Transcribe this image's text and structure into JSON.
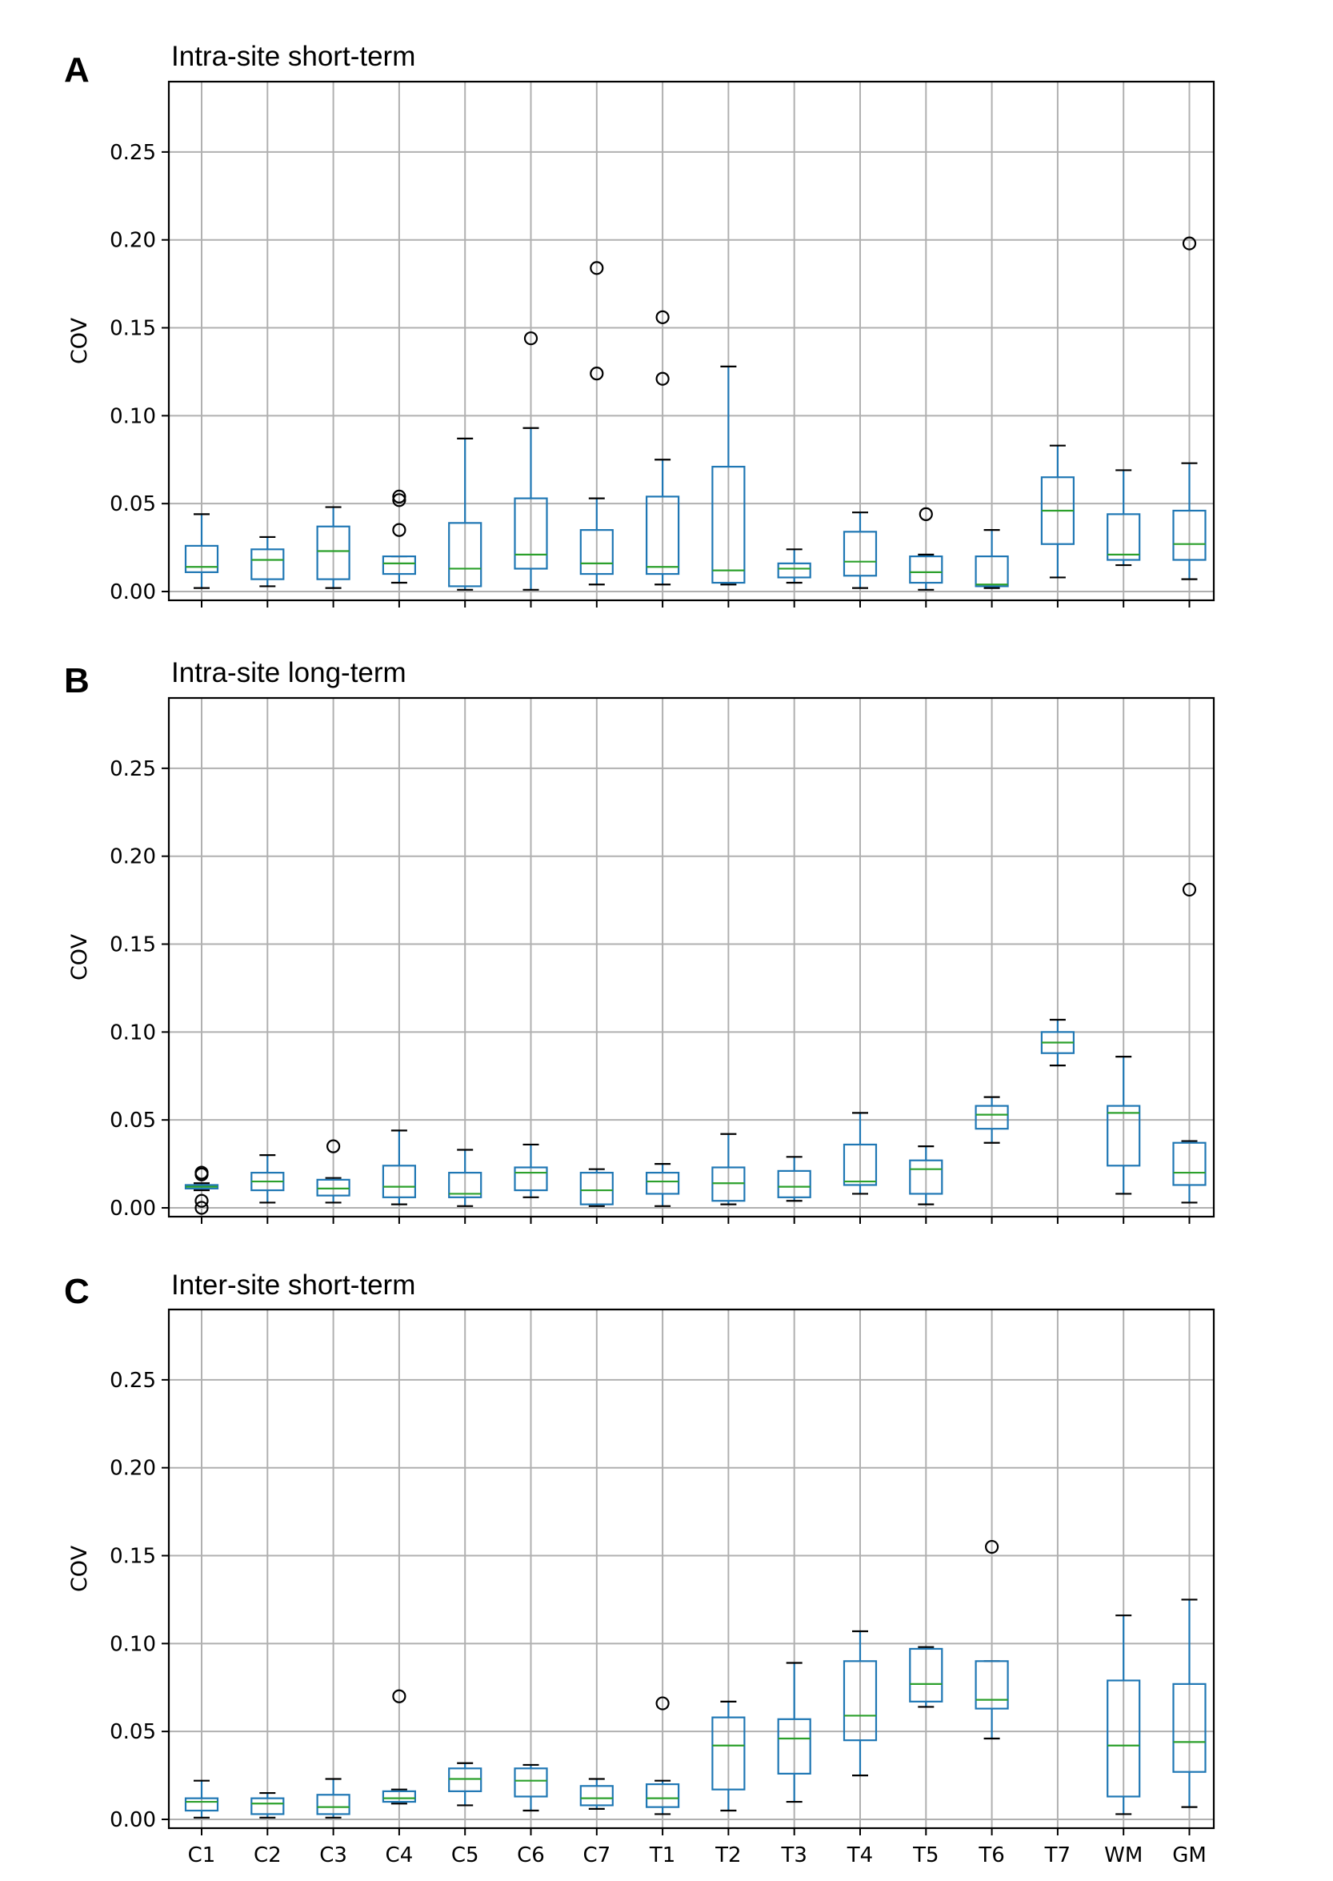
{
  "chart_data": [
    {
      "type": "box",
      "panel_label": "A",
      "title": "Intra-site short-term",
      "ylabel": "COV",
      "xlabel": "",
      "ylim": [
        -0.005,
        0.29
      ],
      "yticks": [
        "0.00",
        "0.05",
        "0.10",
        "0.15",
        "0.20",
        "0.25"
      ],
      "grid": true,
      "show_x_tick_labels": false,
      "categories": [
        "C1",
        "C2",
        "C3",
        "C4",
        "C5",
        "C6",
        "C7",
        "T1",
        "T2",
        "T3",
        "T4",
        "T5",
        "T6",
        "T7",
        "WM",
        "GM"
      ],
      "boxes": [
        {
          "category": "C1",
          "whislo": 0.002,
          "q1": 0.011,
          "median": 0.014,
          "q3": 0.026,
          "whishi": 0.044,
          "fliers": []
        },
        {
          "category": "C2",
          "whislo": 0.003,
          "q1": 0.007,
          "median": 0.018,
          "q3": 0.024,
          "whishi": 0.031,
          "fliers": []
        },
        {
          "category": "C3",
          "whislo": 0.002,
          "q1": 0.007,
          "median": 0.023,
          "q3": 0.037,
          "whishi": 0.048,
          "fliers": []
        },
        {
          "category": "C4",
          "whislo": 0.005,
          "q1": 0.01,
          "median": 0.016,
          "q3": 0.02,
          "whishi": 0.02,
          "fliers": [
            0.035,
            0.052,
            0.054
          ]
        },
        {
          "category": "C5",
          "whislo": 0.001,
          "q1": 0.003,
          "median": 0.013,
          "q3": 0.039,
          "whishi": 0.087,
          "fliers": []
        },
        {
          "category": "C6",
          "whislo": 0.001,
          "q1": 0.013,
          "median": 0.021,
          "q3": 0.053,
          "whishi": 0.093,
          "fliers": [
            0.144
          ]
        },
        {
          "category": "C7",
          "whislo": 0.004,
          "q1": 0.01,
          "median": 0.016,
          "q3": 0.035,
          "whishi": 0.053,
          "fliers": [
            0.124,
            0.184
          ]
        },
        {
          "category": "T1",
          "whislo": 0.004,
          "q1": 0.01,
          "median": 0.014,
          "q3": 0.054,
          "whishi": 0.075,
          "fliers": [
            0.121,
            0.156
          ]
        },
        {
          "category": "T2",
          "whislo": 0.004,
          "q1": 0.005,
          "median": 0.012,
          "q3": 0.071,
          "whishi": 0.128,
          "fliers": []
        },
        {
          "category": "T3",
          "whislo": 0.005,
          "q1": 0.008,
          "median": 0.013,
          "q3": 0.016,
          "whishi": 0.024,
          "fliers": []
        },
        {
          "category": "T4",
          "whislo": 0.002,
          "q1": 0.009,
          "median": 0.017,
          "q3": 0.034,
          "whishi": 0.045,
          "fliers": []
        },
        {
          "category": "T5",
          "whislo": 0.001,
          "q1": 0.005,
          "median": 0.011,
          "q3": 0.02,
          "whishi": 0.021,
          "fliers": [
            0.044
          ]
        },
        {
          "category": "T6",
          "whislo": 0.002,
          "q1": 0.003,
          "median": 0.004,
          "q3": 0.02,
          "whishi": 0.035,
          "fliers": []
        },
        {
          "category": "T7",
          "whislo": 0.008,
          "q1": 0.027,
          "median": 0.046,
          "q3": 0.065,
          "whishi": 0.083,
          "fliers": []
        },
        {
          "category": "WM",
          "whislo": 0.015,
          "q1": 0.018,
          "median": 0.021,
          "q3": 0.044,
          "whishi": 0.069,
          "fliers": []
        },
        {
          "category": "GM",
          "whislo": 0.007,
          "q1": 0.018,
          "median": 0.027,
          "q3": 0.046,
          "whishi": 0.073,
          "fliers": [
            0.198
          ]
        }
      ]
    },
    {
      "type": "box",
      "panel_label": "B",
      "title": "Intra-site long-term",
      "ylabel": "COV",
      "xlabel": "",
      "ylim": [
        -0.005,
        0.29
      ],
      "yticks": [
        "0.00",
        "0.05",
        "0.10",
        "0.15",
        "0.20",
        "0.25"
      ],
      "grid": true,
      "show_x_tick_labels": false,
      "categories": [
        "C1",
        "C2",
        "C3",
        "C4",
        "C5",
        "C6",
        "C7",
        "T1",
        "T2",
        "T3",
        "T4",
        "T5",
        "T6",
        "T7",
        "WM",
        "GM"
      ],
      "boxes": [
        {
          "category": "C1",
          "whislo": 0.01,
          "q1": 0.011,
          "median": 0.012,
          "q3": 0.013,
          "whishi": 0.014,
          "fliers": [
            0.0,
            0.004,
            0.019,
            0.02
          ]
        },
        {
          "category": "C2",
          "whislo": 0.003,
          "q1": 0.01,
          "median": 0.015,
          "q3": 0.02,
          "whishi": 0.03,
          "fliers": []
        },
        {
          "category": "C3",
          "whislo": 0.003,
          "q1": 0.007,
          "median": 0.011,
          "q3": 0.016,
          "whishi": 0.017,
          "fliers": [
            0.035
          ]
        },
        {
          "category": "C4",
          "whislo": 0.002,
          "q1": 0.006,
          "median": 0.012,
          "q3": 0.024,
          "whishi": 0.044,
          "fliers": []
        },
        {
          "category": "C5",
          "whislo": 0.001,
          "q1": 0.006,
          "median": 0.008,
          "q3": 0.02,
          "whishi": 0.033,
          "fliers": []
        },
        {
          "category": "C6",
          "whislo": 0.006,
          "q1": 0.01,
          "median": 0.02,
          "q3": 0.023,
          "whishi": 0.036,
          "fliers": []
        },
        {
          "category": "C7",
          "whislo": 0.001,
          "q1": 0.002,
          "median": 0.01,
          "q3": 0.02,
          "whishi": 0.022,
          "fliers": []
        },
        {
          "category": "T1",
          "whislo": 0.001,
          "q1": 0.008,
          "median": 0.015,
          "q3": 0.02,
          "whishi": 0.025,
          "fliers": []
        },
        {
          "category": "T2",
          "whislo": 0.002,
          "q1": 0.004,
          "median": 0.014,
          "q3": 0.023,
          "whishi": 0.042,
          "fliers": []
        },
        {
          "category": "T3",
          "whislo": 0.004,
          "q1": 0.006,
          "median": 0.012,
          "q3": 0.021,
          "whishi": 0.029,
          "fliers": []
        },
        {
          "category": "T4",
          "whislo": 0.008,
          "q1": 0.013,
          "median": 0.015,
          "q3": 0.036,
          "whishi": 0.054,
          "fliers": []
        },
        {
          "category": "T5",
          "whislo": 0.002,
          "q1": 0.008,
          "median": 0.022,
          "q3": 0.027,
          "whishi": 0.035,
          "fliers": []
        },
        {
          "category": "T6",
          "whislo": 0.037,
          "q1": 0.045,
          "median": 0.053,
          "q3": 0.058,
          "whishi": 0.063,
          "fliers": []
        },
        {
          "category": "T7",
          "whislo": 0.081,
          "q1": 0.088,
          "median": 0.094,
          "q3": 0.1,
          "whishi": 0.107,
          "fliers": []
        },
        {
          "category": "WM",
          "whislo": 0.008,
          "q1": 0.024,
          "median": 0.054,
          "q3": 0.058,
          "whishi": 0.086,
          "fliers": []
        },
        {
          "category": "GM",
          "whislo": 0.003,
          "q1": 0.013,
          "median": 0.02,
          "q3": 0.037,
          "whishi": 0.038,
          "fliers": [
            0.181
          ]
        }
      ]
    },
    {
      "type": "box",
      "panel_label": "C",
      "title": "Inter-site short-term",
      "ylabel": "COV",
      "xlabel": "",
      "ylim": [
        -0.005,
        0.29
      ],
      "yticks": [
        "0.00",
        "0.05",
        "0.10",
        "0.15",
        "0.20",
        "0.25"
      ],
      "grid": true,
      "show_x_tick_labels": true,
      "categories": [
        "C1",
        "C2",
        "C3",
        "C4",
        "C5",
        "C6",
        "C7",
        "T1",
        "T2",
        "T3",
        "T4",
        "T5",
        "T6",
        "T7",
        "WM",
        "GM"
      ],
      "boxes": [
        {
          "category": "C1",
          "whislo": 0.001,
          "q1": 0.005,
          "median": 0.01,
          "q3": 0.012,
          "whishi": 0.022,
          "fliers": []
        },
        {
          "category": "C2",
          "whislo": 0.001,
          "q1": 0.003,
          "median": 0.009,
          "q3": 0.012,
          "whishi": 0.015,
          "fliers": []
        },
        {
          "category": "C3",
          "whislo": 0.001,
          "q1": 0.003,
          "median": 0.007,
          "q3": 0.014,
          "whishi": 0.023,
          "fliers": []
        },
        {
          "category": "C4",
          "whislo": 0.009,
          "q1": 0.01,
          "median": 0.012,
          "q3": 0.016,
          "whishi": 0.017,
          "fliers": [
            0.07
          ]
        },
        {
          "category": "C5",
          "whislo": 0.008,
          "q1": 0.016,
          "median": 0.023,
          "q3": 0.029,
          "whishi": 0.032,
          "fliers": []
        },
        {
          "category": "C6",
          "whislo": 0.005,
          "q1": 0.013,
          "median": 0.022,
          "q3": 0.029,
          "whishi": 0.031,
          "fliers": []
        },
        {
          "category": "C7",
          "whislo": 0.006,
          "q1": 0.008,
          "median": 0.012,
          "q3": 0.019,
          "whishi": 0.023,
          "fliers": []
        },
        {
          "category": "T1",
          "whislo": 0.003,
          "q1": 0.007,
          "median": 0.012,
          "q3": 0.02,
          "whishi": 0.022,
          "fliers": [
            0.066
          ]
        },
        {
          "category": "T2",
          "whislo": 0.005,
          "q1": 0.017,
          "median": 0.042,
          "q3": 0.058,
          "whishi": 0.067,
          "fliers": []
        },
        {
          "category": "T3",
          "whislo": 0.01,
          "q1": 0.026,
          "median": 0.046,
          "q3": 0.057,
          "whishi": 0.089,
          "fliers": []
        },
        {
          "category": "T4",
          "whislo": 0.025,
          "q1": 0.045,
          "median": 0.059,
          "q3": 0.09,
          "whishi": 0.107,
          "fliers": []
        },
        {
          "category": "T5",
          "whislo": 0.064,
          "q1": 0.067,
          "median": 0.077,
          "q3": 0.097,
          "whishi": 0.098,
          "fliers": []
        },
        {
          "category": "T6",
          "whislo": 0.046,
          "q1": 0.063,
          "median": 0.068,
          "q3": 0.09,
          "whishi": 0.09,
          "fliers": [
            0.155
          ]
        },
        {
          "category": "T7",
          "whislo": null,
          "q1": null,
          "median": null,
          "q3": null,
          "whishi": null,
          "fliers": []
        },
        {
          "category": "WM",
          "whislo": 0.003,
          "q1": 0.013,
          "median": 0.042,
          "q3": 0.079,
          "whishi": 0.116,
          "fliers": []
        },
        {
          "category": "GM",
          "whislo": 0.007,
          "q1": 0.027,
          "median": 0.044,
          "q3": 0.077,
          "whishi": 0.125,
          "fliers": []
        }
      ]
    }
  ],
  "colors": {
    "box": "#1f77b4",
    "median": "#2ca02c",
    "cap": "#000000",
    "grid": "#b0b0b0",
    "flier": "#000000"
  }
}
